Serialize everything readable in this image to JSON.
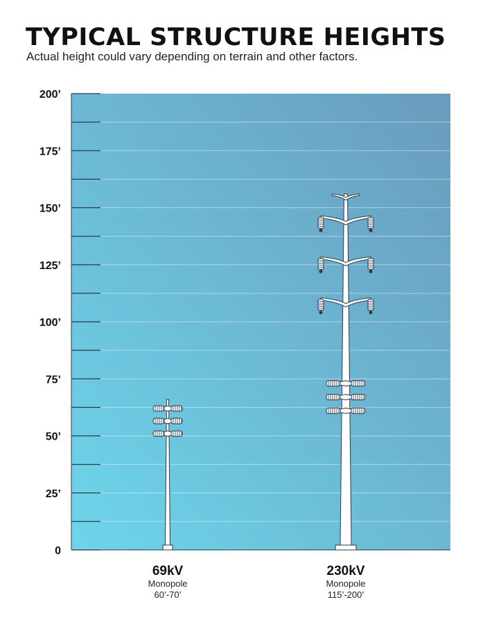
{
  "header": {
    "title": "TYPICAL STRUCTURE HEIGHTS",
    "subtitle": "Actual height could vary depending on terrain and other factors."
  },
  "colors": {
    "plot_gradient_start": "#6dd5ea",
    "plot_gradient_end": "#6a9bbd",
    "pole_fill": "#ffffff",
    "pole_stroke": "#2a3a48"
  },
  "chart_data": {
    "type": "bar",
    "title": "TYPICAL STRUCTURE HEIGHTS",
    "subtitle": "Actual height could vary depending on terrain and other factors.",
    "xlabel": "",
    "ylabel": "",
    "ylim": [
      0,
      200
    ],
    "y_unit": "feet",
    "y_ticks": [
      {
        "value": 0,
        "label": "0"
      },
      {
        "value": 25,
        "label": "25’"
      },
      {
        "value": 50,
        "label": "50’"
      },
      {
        "value": 75,
        "label": "75’"
      },
      {
        "value": 100,
        "label": "100’"
      },
      {
        "value": 125,
        "label": "125’"
      },
      {
        "value": 150,
        "label": "150’"
      },
      {
        "value": 175,
        "label": "175’"
      },
      {
        "value": 200,
        "label": "200’"
      }
    ],
    "y_minor_step": 12.5,
    "grid": true,
    "categories": [
      {
        "name": "69kV",
        "type_label": "Monopole",
        "range_label": "60’-70’",
        "height": 66,
        "insulator_levels": [
          62,
          56.5,
          51
        ],
        "crossarm_levels": []
      },
      {
        "name": "230kV",
        "type_label": "Monopole",
        "range_label": "115’-200’",
        "height": 156,
        "insulator_levels": [
          73,
          67,
          61
        ],
        "crossarm_levels": [
          144,
          126,
          108
        ]
      }
    ]
  }
}
